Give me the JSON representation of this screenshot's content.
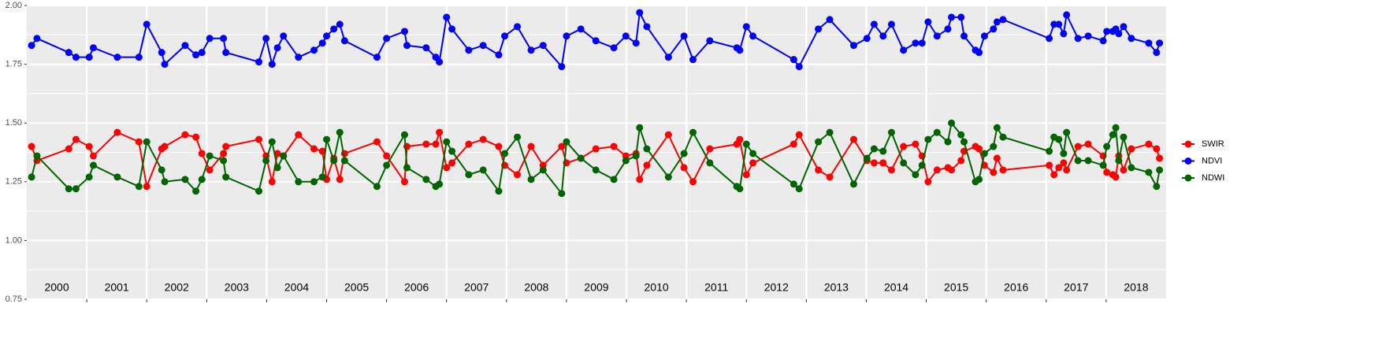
{
  "chart_data": {
    "type": "line",
    "x": [
      2000.08,
      2000.17,
      2000.7,
      2000.82,
      2001.04,
      2001.11,
      2001.51,
      2001.87,
      2002.0,
      2002.25,
      2002.3,
      2002.64,
      2002.82,
      2002.92,
      2003.05,
      2003.28,
      2003.32,
      2003.87,
      2003.99,
      2004.09,
      2004.18,
      2004.28,
      2004.53,
      2004.79,
      2004.93,
      2005.0,
      2005.12,
      2005.22,
      2005.3,
      2005.84,
      2006.0,
      2006.3,
      2006.34,
      2006.66,
      2006.82,
      2006.88,
      2007.0,
      2007.09,
      2007.37,
      2007.61,
      2007.87,
      2007.97,
      2008.18,
      2008.41,
      2008.61,
      2008.92,
      2009.0,
      2009.24,
      2009.49,
      2009.79,
      2009.99,
      2010.16,
      2010.22,
      2010.34,
      2010.7,
      2010.96,
      2011.11,
      2011.39,
      2011.84,
      2011.89,
      2012.0,
      2012.11,
      2012.79,
      2012.88,
      2013.2,
      2013.39,
      2013.79,
      2014.01,
      2014.13,
      2014.28,
      2014.42,
      2014.62,
      2014.82,
      2014.93,
      2015.03,
      2015.18,
      2015.36,
      2015.42,
      2015.58,
      2015.63,
      2015.82,
      2015.88,
      2015.97,
      2016.12,
      2016.18,
      2016.28,
      2017.05,
      2017.13,
      2017.21,
      2017.29,
      2017.34,
      2017.53,
      2017.7,
      2017.95,
      2018.01,
      2018.11,
      2018.16,
      2018.21,
      2018.29,
      2018.42,
      2018.71,
      2018.84,
      2018.89
    ],
    "series": [
      {
        "name": "SWIR",
        "color": "#ff0000",
        "values": [
          1.4,
          1.34,
          1.39,
          1.43,
          1.4,
          1.36,
          1.46,
          1.42,
          1.23,
          1.39,
          1.4,
          1.45,
          1.44,
          1.37,
          1.3,
          1.37,
          1.4,
          1.43,
          1.36,
          1.25,
          1.37,
          1.36,
          1.45,
          1.39,
          1.38,
          1.26,
          1.35,
          1.26,
          1.37,
          1.42,
          1.36,
          1.25,
          1.4,
          1.41,
          1.41,
          1.46,
          1.31,
          1.33,
          1.41,
          1.43,
          1.4,
          1.32,
          1.28,
          1.4,
          1.32,
          1.4,
          1.33,
          1.35,
          1.39,
          1.4,
          1.36,
          1.37,
          1.26,
          1.32,
          1.45,
          1.31,
          1.25,
          1.39,
          1.41,
          1.43,
          1.28,
          1.33,
          1.41,
          1.45,
          1.3,
          1.27,
          1.43,
          1.34,
          1.33,
          1.33,
          1.3,
          1.4,
          1.41,
          1.36,
          1.25,
          1.3,
          1.31,
          1.3,
          1.34,
          1.38,
          1.4,
          1.39,
          1.32,
          1.29,
          1.35,
          1.3,
          1.32,
          1.28,
          1.31,
          1.33,
          1.3,
          1.4,
          1.41,
          1.36,
          1.29,
          1.28,
          1.27,
          1.36,
          1.3,
          1.39,
          1.41,
          1.39,
          1.35
        ]
      },
      {
        "name": "NDVI",
        "color": "#0000ff",
        "values": [
          1.83,
          1.86,
          1.8,
          1.78,
          1.78,
          1.82,
          1.78,
          1.78,
          1.92,
          1.8,
          1.75,
          1.83,
          1.79,
          1.8,
          1.86,
          1.86,
          1.8,
          1.76,
          1.86,
          1.75,
          1.82,
          1.87,
          1.78,
          1.81,
          1.84,
          1.87,
          1.9,
          1.92,
          1.85,
          1.78,
          1.86,
          1.89,
          1.83,
          1.82,
          1.78,
          1.76,
          1.95,
          1.9,
          1.81,
          1.83,
          1.79,
          1.87,
          1.91,
          1.81,
          1.83,
          1.74,
          1.87,
          1.9,
          1.85,
          1.82,
          1.87,
          1.84,
          1.97,
          1.91,
          1.78,
          1.87,
          1.77,
          1.85,
          1.82,
          1.81,
          1.91,
          1.87,
          1.77,
          1.74,
          1.9,
          1.94,
          1.83,
          1.86,
          1.92,
          1.87,
          1.92,
          1.81,
          1.84,
          1.84,
          1.93,
          1.87,
          1.9,
          1.95,
          1.95,
          1.87,
          1.81,
          1.8,
          1.87,
          1.9,
          1.93,
          1.94,
          1.86,
          1.92,
          1.92,
          1.88,
          1.96,
          1.86,
          1.87,
          1.85,
          1.89,
          1.89,
          1.9,
          1.88,
          1.91,
          1.86,
          1.84,
          1.8,
          1.84
        ]
      },
      {
        "name": "NDWI",
        "color": "#006400",
        "values": [
          1.27,
          1.36,
          1.22,
          1.22,
          1.27,
          1.32,
          1.27,
          1.23,
          1.42,
          1.3,
          1.25,
          1.26,
          1.21,
          1.26,
          1.36,
          1.34,
          1.27,
          1.21,
          1.34,
          1.42,
          1.31,
          1.36,
          1.25,
          1.25,
          1.27,
          1.43,
          1.34,
          1.46,
          1.34,
          1.23,
          1.32,
          1.45,
          1.31,
          1.26,
          1.23,
          1.24,
          1.42,
          1.38,
          1.28,
          1.3,
          1.21,
          1.37,
          1.44,
          1.26,
          1.3,
          1.2,
          1.42,
          1.35,
          1.3,
          1.26,
          1.34,
          1.36,
          1.48,
          1.39,
          1.27,
          1.37,
          1.46,
          1.33,
          1.23,
          1.22,
          1.41,
          1.37,
          1.24,
          1.22,
          1.42,
          1.46,
          1.24,
          1.35,
          1.39,
          1.38,
          1.46,
          1.33,
          1.28,
          1.32,
          1.43,
          1.46,
          1.42,
          1.5,
          1.45,
          1.42,
          1.25,
          1.26,
          1.37,
          1.4,
          1.48,
          1.44,
          1.38,
          1.44,
          1.43,
          1.37,
          1.46,
          1.34,
          1.34,
          1.32,
          1.4,
          1.45,
          1.48,
          1.34,
          1.44,
          1.31,
          1.29,
          1.23,
          1.3
        ]
      }
    ],
    "xlim": [
      2000,
      2019
    ],
    "xticks": [
      {
        "value": 2000.5,
        "label": "2000"
      },
      {
        "value": 2001.5,
        "label": "2001"
      },
      {
        "value": 2002.5,
        "label": "2002"
      },
      {
        "value": 2003.5,
        "label": "2003"
      },
      {
        "value": 2004.5,
        "label": "2004"
      },
      {
        "value": 2005.5,
        "label": "2005"
      },
      {
        "value": 2006.5,
        "label": "2006"
      },
      {
        "value": 2007.5,
        "label": "2007"
      },
      {
        "value": 2008.5,
        "label": "2008"
      },
      {
        "value": 2009.5,
        "label": "2009"
      },
      {
        "value": 2010.5,
        "label": "2010"
      },
      {
        "value": 2011.5,
        "label": "2011"
      },
      {
        "value": 2012.5,
        "label": "2012"
      },
      {
        "value": 2013.5,
        "label": "2013"
      },
      {
        "value": 2014.5,
        "label": "2014"
      },
      {
        "value": 2015.5,
        "label": "2015"
      },
      {
        "value": 2016.5,
        "label": "2016"
      },
      {
        "value": 2017.5,
        "label": "2017"
      },
      {
        "value": 2018.5,
        "label": "2018"
      }
    ],
    "ylim": [
      0.75,
      2.0
    ],
    "yticks": [
      {
        "value": 0.75,
        "label": "0.75"
      },
      {
        "value": 1.0,
        "label": "1.00"
      },
      {
        "value": 1.25,
        "label": "1.25"
      },
      {
        "value": 1.5,
        "label": "1.50"
      },
      {
        "value": 1.75,
        "label": "1.75"
      },
      {
        "value": 2.0,
        "label": "2.00"
      }
    ],
    "grid": true,
    "legend": "right"
  }
}
